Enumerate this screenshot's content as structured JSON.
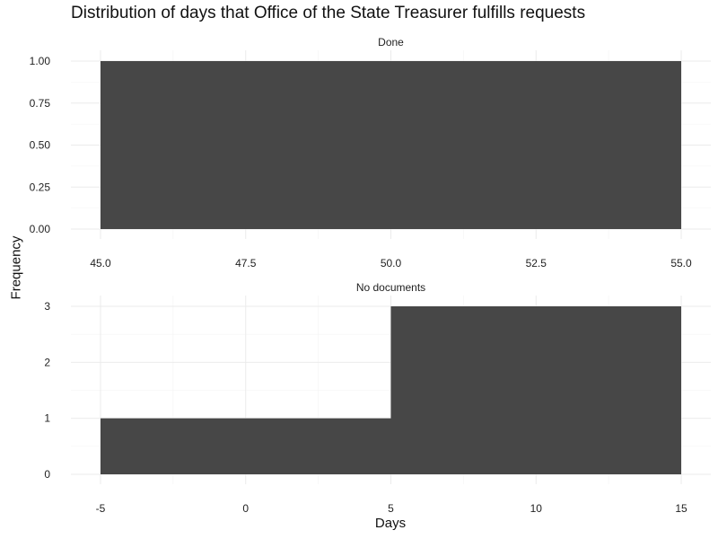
{
  "chart_data": {
    "type": "bar",
    "title": "Distribution of days that Office of the State Treasurer fulfills requests",
    "xlabel": "Days",
    "ylabel": "Frequency",
    "bar_color": "#474747",
    "grid": true,
    "panels": [
      {
        "strip": "Done",
        "xlim": [
          45,
          55
        ],
        "ylim": [
          0,
          1
        ],
        "x_ticks": [
          45,
          47.5,
          50,
          52.5,
          55
        ],
        "x_tick_labels": [
          "45.0",
          "47.5",
          "50.0",
          "52.5",
          "55.0"
        ],
        "y_ticks": [
          0,
          0.25,
          0.5,
          0.75,
          1
        ],
        "y_tick_labels": [
          "0.00",
          "0.25",
          "0.50",
          "0.75",
          "1.00"
        ],
        "bins": [
          {
            "start": 45,
            "end": 55,
            "count": 1
          }
        ]
      },
      {
        "strip": "No documents",
        "xlim": [
          -5,
          15
        ],
        "ylim": [
          0,
          3
        ],
        "x_ticks": [
          -5,
          0,
          5,
          10,
          15
        ],
        "x_tick_labels": [
          "-5",
          "0",
          "5",
          "10",
          "15"
        ],
        "y_ticks": [
          0,
          1,
          2,
          3
        ],
        "y_tick_labels": [
          "0",
          "1",
          "2",
          "3"
        ],
        "bins": [
          {
            "start": -5,
            "end": 5,
            "count": 1
          },
          {
            "start": 5,
            "end": 15,
            "count": 3
          }
        ]
      }
    ]
  }
}
